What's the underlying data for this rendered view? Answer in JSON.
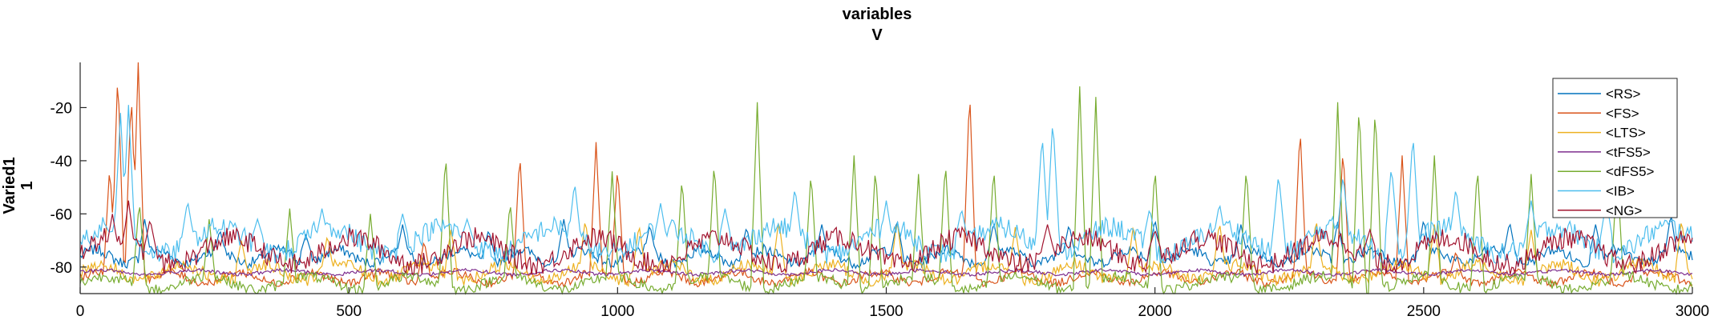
{
  "chart_data": {
    "type": "line",
    "title": "variables",
    "subtitle": "V",
    "xlabel": "",
    "ylabel": "Varied1",
    "ylabel2": "1",
    "xlim": [
      0,
      3000
    ],
    "ylim": [
      -90,
      -3
    ],
    "xticks": [
      0,
      500,
      1000,
      1500,
      2000,
      2500,
      3000
    ],
    "yticks": [
      -20,
      -40,
      -60,
      -80
    ],
    "grid": false,
    "legend_position": "top-right",
    "series": [
      {
        "name": "<RS>",
        "color": "#0072BD",
        "baseline": -76,
        "noise": 2.5,
        "spikes": [
          [
            120,
            -62
          ],
          [
            260,
            -66
          ],
          [
            420,
            -68
          ],
          [
            600,
            -64
          ],
          [
            760,
            -66
          ],
          [
            900,
            -62
          ],
          [
            1060,
            -64
          ],
          [
            1240,
            -65
          ],
          [
            1380,
            -64
          ],
          [
            1520,
            -62
          ],
          [
            1700,
            -63
          ],
          [
            1840,
            -64
          ],
          [
            2000,
            -62
          ],
          [
            2160,
            -64
          ],
          [
            2340,
            -63
          ],
          [
            2500,
            -62
          ],
          [
            2660,
            -63
          ],
          [
            2820,
            -64
          ],
          [
            2960,
            -60
          ]
        ]
      },
      {
        "name": "<FS>",
        "color": "#D95319",
        "baseline": -84,
        "noise": 2.0,
        "spikes": [
          [
            55,
            -42
          ],
          [
            70,
            -6
          ],
          [
            95,
            -14
          ],
          [
            108,
            -3
          ],
          [
            640,
            -70
          ],
          [
            818,
            -37
          ],
          [
            960,
            -33
          ],
          [
            1000,
            -42
          ],
          [
            1655,
            -13
          ],
          [
            2270,
            -27
          ],
          [
            2350,
            -35
          ],
          [
            2460,
            -38
          ],
          [
            2560,
            -74
          ],
          [
            2900,
            -76
          ]
        ]
      },
      {
        "name": "<LTS>",
        "color": "#EDB120",
        "baseline": -82,
        "noise": 3.0,
        "spikes": [
          [
            300,
            -70
          ],
          [
            460,
            -68
          ],
          [
            690,
            -66
          ],
          [
            940,
            -62
          ],
          [
            1040,
            -64
          ],
          [
            1300,
            -62
          ],
          [
            1520,
            -62
          ],
          [
            1740,
            -65
          ],
          [
            1960,
            -64
          ],
          [
            2120,
            -63
          ],
          [
            2300,
            -62
          ],
          [
            2520,
            -64
          ],
          [
            2700,
            -66
          ],
          [
            2980,
            -62
          ]
        ]
      },
      {
        "name": "<tFS5>",
        "color": "#7E2F8E",
        "baseline": -82,
        "noise": 0.8,
        "spikes": []
      },
      {
        "name": "<dFS5>",
        "color": "#77AC30",
        "baseline": -86,
        "noise": 2.5,
        "spikes": [
          [
            110,
            -55
          ],
          [
            240,
            -62
          ],
          [
            390,
            -58
          ],
          [
            540,
            -60
          ],
          [
            680,
            -37
          ],
          [
            800,
            -55
          ],
          [
            990,
            -44
          ],
          [
            1120,
            -46
          ],
          [
            1180,
            -40
          ],
          [
            1260,
            -18
          ],
          [
            1360,
            -44
          ],
          [
            1440,
            -38
          ],
          [
            1480,
            -42
          ],
          [
            1560,
            -45
          ],
          [
            1610,
            -40
          ],
          [
            1700,
            -42
          ],
          [
            1860,
            -12
          ],
          [
            1890,
            -16
          ],
          [
            2000,
            -42
          ],
          [
            2170,
            -42
          ],
          [
            2340,
            -18
          ],
          [
            2380,
            -18
          ],
          [
            2410,
            -19
          ],
          [
            2520,
            -38
          ],
          [
            2600,
            -42
          ],
          [
            2700,
            -45
          ],
          [
            2860,
            -44
          ]
        ]
      },
      {
        "name": "<IB>",
        "color": "#4DBEEE",
        "baseline": -70,
        "noise": 5.0,
        "spikes": [
          [
            75,
            -22
          ],
          [
            90,
            -19
          ],
          [
            200,
            -55
          ],
          [
            330,
            -62
          ],
          [
            450,
            -58
          ],
          [
            600,
            -60
          ],
          [
            720,
            -62
          ],
          [
            920,
            -48
          ],
          [
            1080,
            -56
          ],
          [
            1200,
            -58
          ],
          [
            1330,
            -50
          ],
          [
            1500,
            -55
          ],
          [
            1640,
            -58
          ],
          [
            1790,
            -30
          ],
          [
            1810,
            -24
          ],
          [
            1990,
            -58
          ],
          [
            2120,
            -56
          ],
          [
            2230,
            -45
          ],
          [
            2350,
            -45
          ],
          [
            2440,
            -42
          ],
          [
            2480,
            -30
          ],
          [
            2560,
            -50
          ],
          [
            2700,
            -55
          ],
          [
            2840,
            -55
          ],
          [
            2960,
            -62
          ]
        ]
      },
      {
        "name": "<NG>",
        "color": "#A2142F",
        "baseline": -74,
        "noise": 5.0,
        "spikes": [
          [
            60,
            -60
          ],
          [
            90,
            -55
          ],
          [
            130,
            -62
          ],
          [
            1800,
            -64
          ],
          [
            1640,
            -68
          ],
          [
            2000,
            -66
          ],
          [
            2400,
            -66
          ]
        ]
      }
    ]
  }
}
